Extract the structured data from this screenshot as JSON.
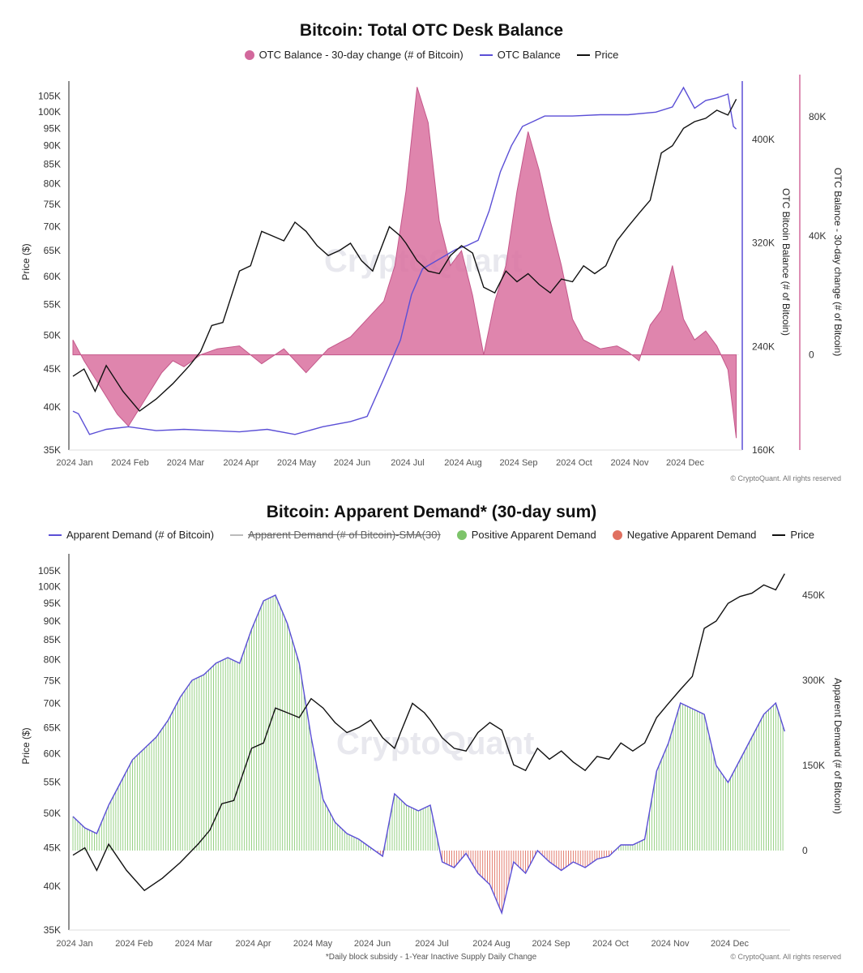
{
  "chart1": {
    "title": "Bitcoin: Total OTC Desk Balance",
    "legend": [
      {
        "label": "OTC Balance - 30-day change (# of Bitcoin)",
        "kind": "dot",
        "color": "#d2689c"
      },
      {
        "label": "OTC Balance",
        "kind": "line",
        "color": "#5b4fd6"
      },
      {
        "label": "Price",
        "kind": "line",
        "color": "#111111"
      }
    ],
    "ylabel_left": "Price ($)",
    "ylabel_right1": "OTC Bitcoin Balance (# of Bitcoin)",
    "ylabel_right2": "OTC Balance - 30-day change (# of Bitcoin)",
    "watermark": "CryptoQuant",
    "copyright": "© CryptoQuant. All rights reserved"
  },
  "chart2": {
    "title": "Bitcoin: Apparent Demand* (30-day sum)",
    "legend": [
      {
        "label": "Apparent Demand (# of Bitcoin)",
        "kind": "line",
        "color": "#5b4fd6"
      },
      {
        "label": "Apparent Demand (# of Bitcoin)-SMA(30)",
        "kind": "line",
        "color": "#bbbbbb",
        "strike": true
      },
      {
        "label": "Positive Apparent Demand",
        "kind": "dot",
        "color": "#7dc46a"
      },
      {
        "label": "Negative Apparent Demand",
        "kind": "dot",
        "color": "#e07060"
      },
      {
        "label": "Price",
        "kind": "line",
        "color": "#111111"
      }
    ],
    "ylabel_left": "Price ($)",
    "ylabel_right": "Apparent Demand (# of Bitcoin)",
    "watermark": "CryptoQuant",
    "copyright": "© CryptoQuant. All rights reserved",
    "footnote": "*Daily block subsidy - 1-Year Inactive Supply Daily Change"
  },
  "chart_data": [
    {
      "type": "line",
      "title": "Bitcoin: Total OTC Desk Balance",
      "x_ticks": [
        "2024 Jan",
        "2024 Feb",
        "2024 Mar",
        "2024 Apr",
        "2024 May",
        "2024 Jun",
        "2024 Jul",
        "2024 Aug",
        "2024 Sep",
        "2024 Oct",
        "2024 Nov",
        "2024 Dec"
      ],
      "price_ticks": [
        "105K",
        "100K",
        "95K",
        "90K",
        "85K",
        "80K",
        "75K",
        "70K",
        "65K",
        "60K",
        "55K",
        "50K",
        "45K",
        "40K",
        "35K"
      ],
      "price_tick_values": [
        105000,
        100000,
        95000,
        90000,
        85000,
        80000,
        75000,
        70000,
        65000,
        60000,
        55000,
        50000,
        45000,
        40000,
        35000
      ],
      "balance_ticks": [
        "400K",
        "320K",
        "240K",
        "160K"
      ],
      "balance_tick_values": [
        400000,
        320000,
        240000,
        160000
      ],
      "change_ticks": [
        "80K",
        "40K",
        "0"
      ],
      "change_tick_values": [
        80000,
        40000,
        0
      ],
      "price_scale": "log",
      "price_ylim": [
        35000,
        110000
      ],
      "balance_ylim": [
        160000,
        445000
      ],
      "change_ylim": [
        -32000,
        92000
      ],
      "series": [
        {
          "name": "Price",
          "axis": "price",
          "x": [
            0,
            0.2,
            0.4,
            0.6,
            0.9,
            1.2,
            1.5,
            1.8,
            2.1,
            2.3,
            2.5,
            2.7,
            3.0,
            3.2,
            3.4,
            3.6,
            3.8,
            4.0,
            4.2,
            4.4,
            4.6,
            4.8,
            5.0,
            5.2,
            5.4,
            5.5,
            5.7,
            5.9,
            6.0,
            6.2,
            6.4,
            6.6,
            6.8,
            7.0,
            7.2,
            7.4,
            7.6,
            7.8,
            8.0,
            8.2,
            8.4,
            8.6,
            8.8,
            9.0,
            9.2,
            9.4,
            9.6,
            9.8,
            10.0,
            10.2,
            10.4,
            10.6,
            10.8,
            11.0,
            11.2,
            11.4,
            11.6,
            11.8,
            11.95
          ],
          "values": [
            44000,
            45000,
            42000,
            45500,
            42000,
            39500,
            41000,
            43000,
            45500,
            47500,
            51500,
            52000,
            61000,
            62000,
            69000,
            68000,
            67000,
            71000,
            69000,
            66000,
            64000,
            65000,
            66500,
            63000,
            61000,
            64000,
            70000,
            68000,
            66500,
            63000,
            61000,
            60500,
            64000,
            66000,
            64500,
            58000,
            57000,
            61000,
            59000,
            60500,
            58500,
            57000,
            59500,
            59000,
            62000,
            60500,
            62000,
            67000,
            70000,
            73000,
            76000,
            88000,
            90000,
            95000,
            97000,
            98000,
            100500,
            99000,
            104000
          ]
        },
        {
          "name": "OTC Balance",
          "axis": "balance",
          "x": [
            0,
            0.1,
            0.3,
            0.6,
            1.0,
            1.5,
            2.0,
            3.0,
            3.5,
            4.0,
            4.5,
            5.0,
            5.3,
            5.6,
            5.9,
            6.1,
            6.3,
            6.5,
            6.7,
            6.9,
            7.1,
            7.3,
            7.5,
            7.7,
            7.9,
            8.1,
            8.3,
            8.5,
            9.0,
            9.5,
            10.0,
            10.5,
            10.8,
            11.0,
            11.2,
            11.4,
            11.6,
            11.8,
            11.9,
            11.95
          ],
          "values": [
            190000,
            188000,
            172000,
            176000,
            178000,
            175000,
            176000,
            174000,
            176000,
            172000,
            178000,
            182000,
            186000,
            215000,
            245000,
            280000,
            300000,
            305000,
            310000,
            315000,
            318000,
            322000,
            345000,
            375000,
            395000,
            410000,
            414000,
            418000,
            418000,
            419000,
            419000,
            421000,
            425000,
            440000,
            424000,
            430000,
            432000,
            435000,
            410000,
            408000
          ]
        },
        {
          "name": "OTC Balance - 30-day change",
          "axis": "change",
          "x": [
            0,
            0.2,
            0.4,
            0.6,
            0.8,
            1.0,
            1.2,
            1.4,
            1.6,
            1.8,
            2.0,
            2.3,
            2.6,
            3.0,
            3.4,
            3.8,
            4.2,
            4.6,
            5.0,
            5.4,
            5.6,
            5.8,
            6.0,
            6.2,
            6.4,
            6.6,
            6.8,
            7.0,
            7.2,
            7.4,
            7.6,
            7.8,
            8.0,
            8.2,
            8.4,
            8.6,
            8.8,
            9.0,
            9.2,
            9.5,
            9.8,
            10.0,
            10.2,
            10.4,
            10.6,
            10.8,
            11.0,
            11.2,
            11.4,
            11.6,
            11.8,
            11.9,
            11.95
          ],
          "values": [
            5000,
            -2000,
            -8000,
            -14000,
            -20000,
            -24000,
            -18000,
            -12000,
            -6000,
            -2000,
            -4000,
            0,
            2000,
            3000,
            -3000,
            2000,
            -6000,
            2000,
            6000,
            14000,
            18000,
            30000,
            55000,
            90000,
            78000,
            45000,
            30000,
            35000,
            20000,
            0,
            18000,
            30000,
            55000,
            75000,
            62000,
            45000,
            30000,
            12000,
            5000,
            2000,
            3000,
            1000,
            -2000,
            10000,
            15000,
            30000,
            12000,
            5000,
            8000,
            3000,
            -5000,
            -20000,
            -28000
          ]
        }
      ]
    },
    {
      "type": "line",
      "title": "Bitcoin: Apparent Demand* (30-day sum)",
      "x_ticks": [
        "2024 Jan",
        "2024 Feb",
        "2024 Mar",
        "2024 Apr",
        "2024 May",
        "2024 Jun",
        "2024 Jul",
        "2024 Aug",
        "2024 Sep",
        "2024 Oct",
        "2024 Nov",
        "2024 Dec"
      ],
      "price_ticks": [
        "105K",
        "100K",
        "95K",
        "90K",
        "85K",
        "80K",
        "75K",
        "70K",
        "65K",
        "60K",
        "55K",
        "50K",
        "45K",
        "40K",
        "35K"
      ],
      "price_tick_values": [
        105000,
        100000,
        95000,
        90000,
        85000,
        80000,
        75000,
        70000,
        65000,
        60000,
        55000,
        50000,
        45000,
        40000,
        35000
      ],
      "demand_ticks": [
        "450K",
        "300K",
        "150K",
        "0"
      ],
      "demand_tick_values": [
        450000,
        300000,
        150000,
        0
      ],
      "price_scale": "log",
      "price_ylim": [
        35000,
        110000
      ],
      "demand_ylim": [
        -140000,
        520000
      ],
      "series": [
        {
          "name": "Price",
          "axis": "price",
          "x": [
            0,
            0.2,
            0.4,
            0.6,
            0.9,
            1.2,
            1.5,
            1.8,
            2.1,
            2.3,
            2.5,
            2.7,
            3.0,
            3.2,
            3.4,
            3.6,
            3.8,
            4.0,
            4.2,
            4.4,
            4.6,
            4.8,
            5.0,
            5.2,
            5.4,
            5.5,
            5.7,
            5.9,
            6.0,
            6.2,
            6.4,
            6.6,
            6.8,
            7.0,
            7.2,
            7.4,
            7.6,
            7.8,
            8.0,
            8.2,
            8.4,
            8.6,
            8.8,
            9.0,
            9.2,
            9.4,
            9.6,
            9.8,
            10.0,
            10.2,
            10.4,
            10.6,
            10.8,
            11.0,
            11.2,
            11.4,
            11.6,
            11.8,
            11.95
          ],
          "values": [
            44000,
            45000,
            42000,
            45500,
            42000,
            39500,
            41000,
            43000,
            45500,
            47500,
            51500,
            52000,
            61000,
            62000,
            69000,
            68000,
            67000,
            71000,
            69000,
            66000,
            64000,
            65000,
            66500,
            63000,
            61000,
            64000,
            70000,
            68000,
            66500,
            63000,
            61000,
            60500,
            64000,
            66000,
            64500,
            58000,
            57000,
            61000,
            59000,
            60500,
            58500,
            57000,
            59500,
            59000,
            62000,
            60500,
            62000,
            67000,
            70000,
            73000,
            76000,
            88000,
            90000,
            95000,
            97000,
            98000,
            100500,
            99000,
            104000
          ]
        },
        {
          "name": "Apparent Demand (# of Bitcoin)",
          "axis": "demand",
          "x": [
            0,
            0.2,
            0.4,
            0.6,
            0.8,
            1.0,
            1.2,
            1.4,
            1.6,
            1.8,
            2.0,
            2.2,
            2.4,
            2.6,
            2.8,
            3.0,
            3.2,
            3.4,
            3.6,
            3.8,
            4.0,
            4.2,
            4.4,
            4.6,
            4.8,
            5.0,
            5.2,
            5.4,
            5.6,
            5.8,
            6.0,
            6.2,
            6.4,
            6.6,
            6.8,
            7.0,
            7.2,
            7.4,
            7.6,
            7.8,
            8.0,
            8.2,
            8.4,
            8.6,
            8.8,
            9.0,
            9.2,
            9.4,
            9.6,
            9.8,
            10.0,
            10.2,
            10.4,
            10.6,
            10.8,
            11.0,
            11.2,
            11.4,
            11.6,
            11.8,
            11.95
          ],
          "values": [
            60000,
            40000,
            30000,
            80000,
            120000,
            160000,
            180000,
            200000,
            230000,
            270000,
            300000,
            310000,
            330000,
            340000,
            330000,
            390000,
            440000,
            450000,
            400000,
            330000,
            200000,
            90000,
            50000,
            30000,
            20000,
            5000,
            -10000,
            100000,
            80000,
            70000,
            80000,
            -20000,
            -30000,
            -5000,
            -40000,
            -60000,
            -110000,
            -20000,
            -40000,
            0,
            -20000,
            -35000,
            -20000,
            -30000,
            -15000,
            -10000,
            10000,
            10000,
            20000,
            140000,
            190000,
            260000,
            250000,
            240000,
            150000,
            120000,
            160000,
            200000,
            240000,
            260000,
            210000
          ]
        }
      ]
    }
  ]
}
